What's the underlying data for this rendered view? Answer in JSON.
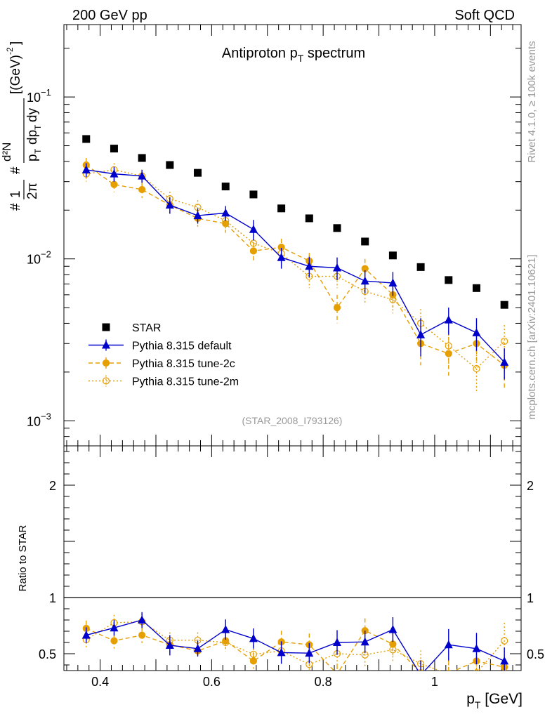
{
  "header": {
    "left": "200 GeV pp",
    "right": "Soft QCD"
  },
  "side_labels": {
    "rivet": "Rivet 4.1.0, ≥ 100k events",
    "mcplots": "mcplots.cern.ch [arXiv:2401.10621]"
  },
  "colors": {
    "star": "#000000",
    "default": "#0000cc",
    "tune2c": "#e69f00",
    "tune2m": "#e69f00",
    "watermark": "#999999"
  },
  "chart_data": [
    {
      "type": "scatter",
      "panel": "main",
      "title": "Antiproton p",
      "title_sub": "T",
      "title_rest": " spectrum",
      "ylabel_parts": [
        "#",
        "1",
        "2π",
        "#",
        "d²N",
        "p",
        "T",
        "dp",
        "T",
        "dy",
        "[(GeV)",
        "-2",
        "]"
      ],
      "ylabel_display": "1/(2π pT) d²N/(dpT dy) [(GeV)^-2]",
      "yscale": "log",
      "ylim": [
        0.0007,
        0.28
      ],
      "yticks": [
        {
          "value": 0.001,
          "base": "10",
          "exp": "−3"
        },
        {
          "value": 0.01,
          "base": "10",
          "exp": "−2"
        },
        {
          "value": 0.1,
          "base": "10",
          "exp": "−1"
        }
      ],
      "xlim": [
        0.335,
        1.155
      ],
      "watermark": "(STAR_2008_I793126)",
      "legend_position": "bottom-left",
      "x": [
        0.375,
        0.425,
        0.475,
        0.525,
        0.575,
        0.625,
        0.675,
        0.725,
        0.775,
        0.825,
        0.875,
        0.925,
        0.975,
        1.025,
        1.075,
        1.125
      ],
      "series": [
        {
          "name": "STAR",
          "marker": "square-filled",
          "line": "none",
          "values": [
            0.055,
            0.048,
            0.042,
            0.038,
            0.034,
            0.028,
            0.025,
            0.0205,
            0.0178,
            0.0155,
            0.0128,
            0.0105,
            0.0089,
            0.0074,
            0.0066,
            0.0052
          ],
          "errors": [
            0,
            0,
            0,
            0,
            0,
            0,
            0,
            0,
            0,
            0,
            0,
            0,
            0,
            0,
            0,
            0
          ]
        },
        {
          "name": "Pythia 8.315 default",
          "marker": "triangle-filled",
          "line": "solid",
          "values": [
            0.0355,
            0.0335,
            0.0325,
            0.0215,
            0.0185,
            0.0192,
            0.0152,
            0.0102,
            0.009,
            0.0088,
            0.0073,
            0.0071,
            0.0034,
            0.0042,
            0.0035,
            0.0023
          ],
          "errors": [
            0.0035,
            0.0035,
            0.003,
            0.0025,
            0.002,
            0.002,
            0.0022,
            0.0015,
            0.0013,
            0.0014,
            0.0012,
            0.0012,
            0.0009,
            0.0008,
            0.0008,
            0.0005
          ]
        },
        {
          "name": "Pythia 8.315 tune-2c",
          "marker": "circle-filled",
          "line": "dashed",
          "values": [
            0.038,
            0.0288,
            0.0268,
            0.0215,
            0.0178,
            0.0165,
            0.0112,
            0.0118,
            0.0097,
            0.005,
            0.0087,
            0.006,
            0.003,
            0.0026,
            0.003,
            0.0022
          ],
          "errors": [
            0.004,
            0.003,
            0.003,
            0.0025,
            0.002,
            0.002,
            0.0015,
            0.0015,
            0.0012,
            0.001,
            0.0013,
            0.001,
            0.0008,
            0.0007,
            0.0007,
            0.0006
          ]
        },
        {
          "name": "Pythia 8.315 tune-2m",
          "marker": "circle-open",
          "line": "dotted",
          "values": [
            0.0335,
            0.0355,
            0.0325,
            0.0235,
            0.0208,
            0.0172,
            0.0125,
            0.0108,
            0.0078,
            0.0078,
            0.0063,
            0.0056,
            0.004,
            0.0029,
            0.0021,
            0.0031
          ],
          "errors": [
            0.0035,
            0.0035,
            0.003,
            0.0025,
            0.0022,
            0.002,
            0.0015,
            0.0015,
            0.0012,
            0.0012,
            0.0011,
            0.001,
            0.0009,
            0.0007,
            0.0006,
            0.0008
          ]
        }
      ]
    },
    {
      "type": "scatter",
      "panel": "ratio",
      "ylabel": "Ratio to STAR",
      "xlabel": "p",
      "xlabel_sub": "T",
      "xlabel_rest": " [GeV]",
      "ylim": [
        0.35,
        2.35
      ],
      "yticks": [
        {
          "value": 0.5,
          "label": "0.5"
        },
        {
          "value": 1,
          "label": "1"
        },
        {
          "value": 2,
          "label": "2"
        }
      ],
      "xticks": [
        {
          "value": 0.4,
          "label": "0.4"
        },
        {
          "value": 0.6,
          "label": "0.6"
        },
        {
          "value": 0.8,
          "label": "0.8"
        },
        {
          "value": 1.0,
          "label": "1"
        }
      ],
      "reference_line": 1,
      "x": [
        0.375,
        0.425,
        0.475,
        0.525,
        0.575,
        0.625,
        0.675,
        0.725,
        0.775,
        0.825,
        0.875,
        0.925,
        0.975,
        1.025,
        1.075,
        1.125
      ],
      "series": [
        {
          "name": "Pythia 8.315 default",
          "values": [
            0.665,
            0.73,
            0.8,
            0.575,
            0.545,
            0.715,
            0.635,
            0.51,
            0.505,
            0.6,
            0.605,
            0.715,
            0.31,
            0.58,
            0.545,
            0.435
          ],
          "errors": [
            0.07,
            0.07,
            0.07,
            0.09,
            0.07,
            0.09,
            0.09,
            0.1,
            0.09,
            0.11,
            0.1,
            0.11,
            0.13,
            0.14,
            0.14,
            0.12
          ]
        },
        {
          "name": "Pythia 8.315 tune-2c",
          "values": [
            0.725,
            0.615,
            0.665,
            0.58,
            0.525,
            0.615,
            0.435,
            0.605,
            0.58,
            0.32,
            0.705,
            0.585,
            0.33,
            0.325,
            0.435,
            0.38
          ],
          "errors": [
            0.07,
            0.07,
            0.07,
            0.07,
            0.06,
            0.07,
            0.07,
            0.1,
            0.1,
            0.08,
            0.11,
            0.1,
            0.1,
            0.12,
            0.13,
            0.11
          ]
        },
        {
          "name": "Pythia 8.315 tune-2m",
          "values": [
            0.625,
            0.775,
            0.785,
            0.62,
            0.62,
            0.6,
            0.495,
            0.525,
            0.405,
            0.5,
            0.49,
            0.535,
            0.41,
            0.32,
            0.33,
            0.615
          ],
          "errors": [
            0.07,
            0.07,
            0.07,
            0.07,
            0.07,
            0.08,
            0.08,
            0.09,
            0.09,
            0.1,
            0.1,
            0.1,
            0.12,
            0.12,
            0.13,
            0.16
          ]
        }
      ]
    }
  ]
}
